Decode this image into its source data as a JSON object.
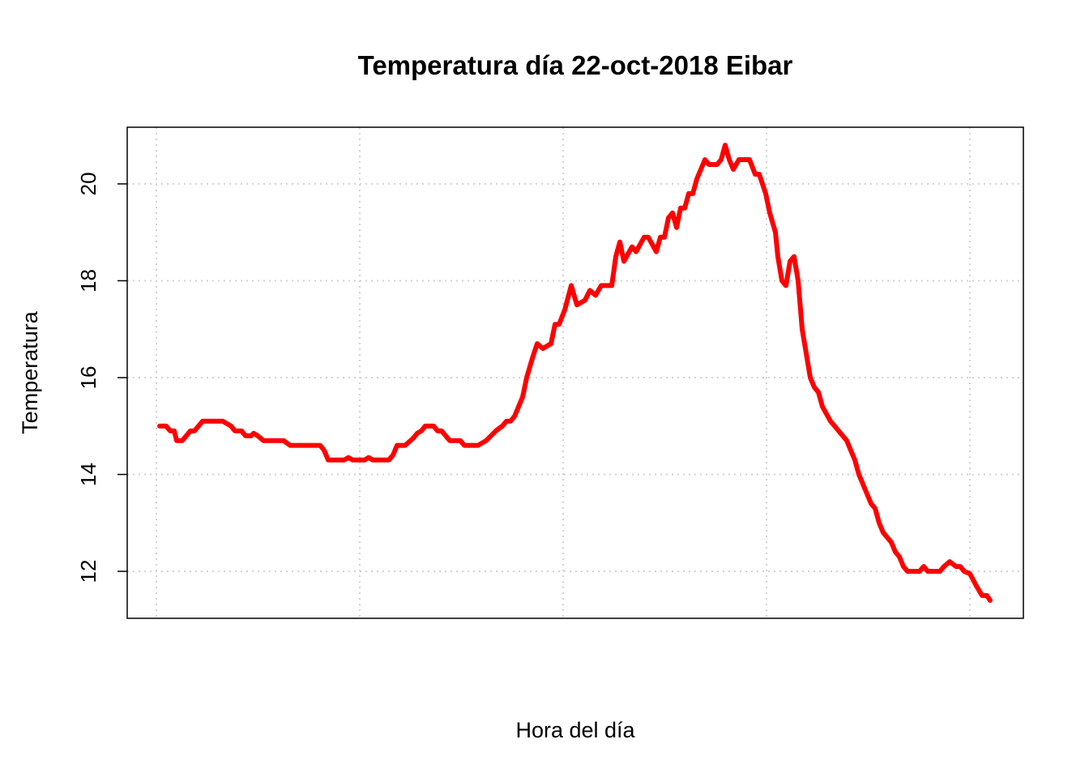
{
  "chart_data": {
    "type": "line",
    "title": "Temperatura día 22-oct-2018 Eibar",
    "x_label": "Hora del día",
    "y_label": "Temperatura",
    "x": [
      4,
      12,
      17,
      22,
      25,
      32,
      42,
      47,
      57,
      82,
      92,
      97,
      105,
      110,
      117,
      120,
      125,
      132,
      157,
      165,
      202,
      207,
      212,
      232,
      237,
      242,
      257,
      262,
      267,
      287,
      292,
      297,
      307,
      317,
      322,
      327,
      332,
      342,
      347,
      352,
      362,
      375,
      380,
      397,
      407,
      419,
      427,
      432,
      437,
      442,
      452,
      457,
      464,
      470,
      477,
      487,
      492,
      497,
      504,
      512,
      519,
      529,
      535,
      542,
      549,
      562,
      567,
      572,
      577,
      587,
      592,
      602,
      607,
      617,
      622,
      627,
      632,
      637,
      642,
      647,
      652,
      657,
      662,
      667,
      672,
      677,
      682,
      692,
      697,
      702,
      707,
      712,
      719,
      732,
      739,
      744,
      752,
      757,
      764,
      767,
      772,
      777,
      782,
      787,
      792,
      797,
      802,
      807,
      812,
      817,
      822,
      832,
      837,
      847,
      852,
      862,
      867,
      877,
      882,
      887,
      892,
      897,
      907,
      912,
      917,
      922,
      927,
      942,
      947,
      952,
      967,
      972,
      979,
      987,
      992,
      997,
      1004,
      1012,
      1019,
      1025,
      1029
    ],
    "series": [
      {
        "color": "#ff0000",
        "values": [
          15.0,
          15.0,
          14.9,
          14.9,
          14.7,
          14.7,
          14.9,
          14.9,
          15.1,
          15.1,
          15.0,
          14.9,
          14.9,
          14.8,
          14.8,
          14.85,
          14.8,
          14.7,
          14.7,
          14.6,
          14.6,
          14.5,
          14.3,
          14.3,
          14.35,
          14.3,
          14.3,
          14.35,
          14.3,
          14.3,
          14.4,
          14.6,
          14.6,
          14.75,
          14.85,
          14.9,
          15.0,
          15.0,
          14.9,
          14.9,
          14.7,
          14.7,
          14.6,
          14.6,
          14.7,
          14.9,
          15.0,
          15.1,
          15.1,
          15.2,
          15.6,
          16.0,
          16.4,
          16.7,
          16.6,
          16.7,
          17.1,
          17.1,
          17.4,
          17.9,
          17.5,
          17.6,
          17.8,
          17.7,
          17.9,
          17.9,
          18.5,
          18.8,
          18.4,
          18.7,
          18.6,
          18.9,
          18.9,
          18.6,
          18.9,
          18.9,
          19.3,
          19.4,
          19.1,
          19.5,
          19.5,
          19.8,
          19.8,
          20.1,
          20.3,
          20.5,
          20.4,
          20.4,
          20.5,
          20.8,
          20.5,
          20.3,
          20.5,
          20.5,
          20.2,
          20.2,
          19.8,
          19.4,
          19.0,
          18.5,
          18.0,
          17.9,
          18.4,
          18.5,
          18.0,
          17.0,
          16.5,
          16.0,
          15.8,
          15.7,
          15.4,
          15.1,
          15.0,
          14.8,
          14.7,
          14.3,
          14.0,
          13.6,
          13.4,
          13.3,
          13.0,
          12.8,
          12.6,
          12.4,
          12.3,
          12.1,
          12.0,
          12.0,
          12.1,
          12.0,
          12.0,
          12.1,
          12.2,
          12.1,
          12.1,
          12.0,
          11.95,
          11.7,
          11.5,
          11.5,
          11.4
        ]
      }
    ],
    "xlim": [
      -36,
      1070
    ],
    "xticks": [
      0,
      251,
      502,
      753,
      1004
    ],
    "ylim": [
      11.03,
      21.17
    ],
    "yticks": [
      12,
      14,
      16,
      18,
      20
    ],
    "grid": true
  }
}
